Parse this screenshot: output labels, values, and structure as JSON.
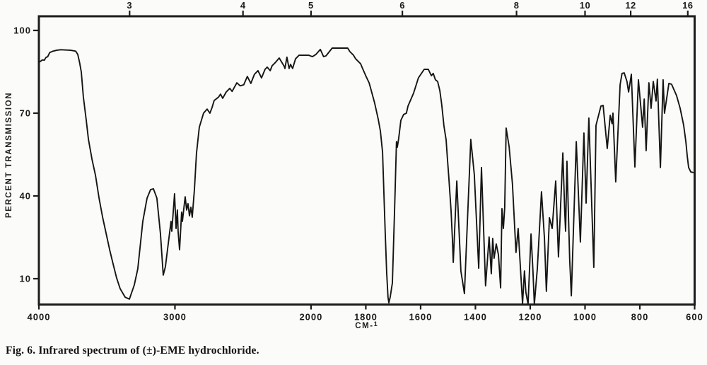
{
  "figure": {
    "caption": "Fig. 6.  Infrared spectrum of (±)-EME hydrochloride."
  },
  "chart_data": {
    "type": "line",
    "title": "",
    "background": "#fbfbf9",
    "line_color": "#151515",
    "axis_color": "#1c1c1c",
    "x_axis": {
      "label": "CM-1",
      "label_prefix": "CM-",
      "label_sup": "1",
      "unit": "wavenumber (cm-1)",
      "range": [
        4000,
        600
      ],
      "ticks": [
        4000,
        3000,
        2000,
        1800,
        1600,
        1400,
        1200,
        1000,
        800,
        600
      ],
      "scale_break": {
        "at": 2000,
        "left_fraction": 0.415
      },
      "grid": false
    },
    "top_axis": {
      "unit": "microns",
      "ticks": [
        3,
        4,
        5,
        6,
        8,
        10,
        12,
        16
      ]
    },
    "y_axis": {
      "label": "PERCENT TRANSMISSION",
      "range": [
        0,
        105
      ],
      "ticks": [
        100,
        70,
        40,
        10
      ],
      "grid": false
    },
    "series": [
      {
        "name": "(±)-EME hydrochloride",
        "x_unit": "cm-1",
        "y_unit": "percent transmission",
        "points": [
          [
            4000,
            88.5
          ],
          [
            3988,
            88.8
          ],
          [
            3975,
            89.3
          ],
          [
            3960,
            89.2
          ],
          [
            3948,
            90.2
          ],
          [
            3935,
            90.5
          ],
          [
            3920,
            92.0
          ],
          [
            3900,
            92.4
          ],
          [
            3870,
            92.8
          ],
          [
            3840,
            93.0
          ],
          [
            3800,
            92.9
          ],
          [
            3766,
            92.8
          ],
          [
            3730,
            92.5
          ],
          [
            3714,
            91.3
          ],
          [
            3700,
            88.2
          ],
          [
            3688,
            84.9
          ],
          [
            3673,
            75.9
          ],
          [
            3652,
            67.4
          ],
          [
            3636,
            60.5
          ],
          [
            3610,
            53.3
          ],
          [
            3584,
            47.4
          ],
          [
            3558,
            39.2
          ],
          [
            3532,
            32.3
          ],
          [
            3506,
            26.4
          ],
          [
            3480,
            20.5
          ],
          [
            3455,
            15.4
          ],
          [
            3429,
            10.3
          ],
          [
            3403,
            6.4
          ],
          [
            3366,
            3.3
          ],
          [
            3335,
            2.6
          ],
          [
            3299,
            7.7
          ],
          [
            3273,
            13.6
          ],
          [
            3236,
            30.8
          ],
          [
            3205,
            39.2
          ],
          [
            3179,
            42.3
          ],
          [
            3158,
            42.6
          ],
          [
            3133,
            39.2
          ],
          [
            3107,
            26.4
          ],
          [
            3086,
            11.3
          ],
          [
            3070,
            14.4
          ],
          [
            3055,
            20.5
          ],
          [
            3029,
            30.8
          ],
          [
            3023,
            27.2
          ],
          [
            3003,
            40.8
          ],
          [
            2992,
            28.2
          ],
          [
            2982,
            34.9
          ],
          [
            2977,
            27.2
          ],
          [
            2966,
            20.5
          ],
          [
            2951,
            34.1
          ],
          [
            2945,
            30.8
          ],
          [
            2925,
            39.7
          ],
          [
            2914,
            34.9
          ],
          [
            2904,
            37.2
          ],
          [
            2893,
            32.8
          ],
          [
            2883,
            35.9
          ],
          [
            2873,
            32.3
          ],
          [
            2857,
            42.3
          ],
          [
            2842,
            55.4
          ],
          [
            2821,
            64.9
          ],
          [
            2790,
            70.0
          ],
          [
            2764,
            71.5
          ],
          [
            2743,
            70.0
          ],
          [
            2727,
            72.1
          ],
          [
            2712,
            74.6
          ],
          [
            2680,
            75.8
          ],
          [
            2665,
            76.9
          ],
          [
            2649,
            75.4
          ],
          [
            2623,
            77.7
          ],
          [
            2597,
            79.0
          ],
          [
            2580,
            77.9
          ],
          [
            2545,
            81.0
          ],
          [
            2520,
            79.9
          ],
          [
            2494,
            80.3
          ],
          [
            2468,
            83.3
          ],
          [
            2442,
            80.8
          ],
          [
            2416,
            84.1
          ],
          [
            2390,
            85.4
          ],
          [
            2364,
            82.8
          ],
          [
            2338,
            85.9
          ],
          [
            2322,
            86.7
          ],
          [
            2300,
            85.4
          ],
          [
            2286,
            87.2
          ],
          [
            2260,
            88.5
          ],
          [
            2234,
            90.0
          ],
          [
            2197,
            87.0
          ],
          [
            2192,
            86.2
          ],
          [
            2177,
            90.3
          ],
          [
            2161,
            86.2
          ],
          [
            2150,
            87.7
          ],
          [
            2135,
            86.2
          ],
          [
            2114,
            89.7
          ],
          [
            2088,
            91.0
          ],
          [
            2050,
            91.0
          ],
          [
            2016,
            91.0
          ],
          [
            1995,
            90.5
          ],
          [
            1982,
            91.3
          ],
          [
            1966,
            93.1
          ],
          [
            1954,
            90.5
          ],
          [
            1945,
            90.8
          ],
          [
            1923,
            93.6
          ],
          [
            1897,
            93.6
          ],
          [
            1866,
            93.6
          ],
          [
            1858,
            92.3
          ],
          [
            1845,
            91.0
          ],
          [
            1837,
            89.7
          ],
          [
            1819,
            87.9
          ],
          [
            1812,
            86.2
          ],
          [
            1799,
            83.3
          ],
          [
            1788,
            81.0
          ],
          [
            1781,
            78.5
          ],
          [
            1773,
            75.6
          ],
          [
            1768,
            73.8
          ],
          [
            1755,
            67.9
          ],
          [
            1747,
            63.6
          ],
          [
            1739,
            55.9
          ],
          [
            1734,
            41.0
          ],
          [
            1729,
            26.4
          ],
          [
            1724,
            12.3
          ],
          [
            1719,
            3.3
          ],
          [
            1716,
            1.3
          ],
          [
            1711,
            3.3
          ],
          [
            1703,
            8.5
          ],
          [
            1695,
            34.9
          ],
          [
            1688,
            59.7
          ],
          [
            1685,
            57.7
          ],
          [
            1680,
            60.8
          ],
          [
            1672,
            67.4
          ],
          [
            1662,
            69.5
          ],
          [
            1652,
            70.0
          ],
          [
            1646,
            72.6
          ],
          [
            1626,
            77.2
          ],
          [
            1608,
            82.8
          ],
          [
            1587,
            85.9
          ],
          [
            1572,
            85.9
          ],
          [
            1561,
            83.6
          ],
          [
            1554,
            84.4
          ],
          [
            1546,
            82.1
          ],
          [
            1538,
            81.5
          ],
          [
            1530,
            78.2
          ],
          [
            1523,
            73.1
          ],
          [
            1515,
            65.4
          ],
          [
            1507,
            60.3
          ],
          [
            1502,
            53.3
          ],
          [
            1497,
            46.4
          ],
          [
            1489,
            34.6
          ],
          [
            1484,
            24.4
          ],
          [
            1481,
            15.9
          ],
          [
            1468,
            45.4
          ],
          [
            1453,
            12.8
          ],
          [
            1440,
            4.6
          ],
          [
            1417,
            60.5
          ],
          [
            1404,
            47.7
          ],
          [
            1388,
            13.8
          ],
          [
            1378,
            50.3
          ],
          [
            1363,
            7.4
          ],
          [
            1350,
            25.1
          ],
          [
            1342,
            11.8
          ],
          [
            1337,
            24.6
          ],
          [
            1332,
            17.4
          ],
          [
            1324,
            22.6
          ],
          [
            1316,
            18.7
          ],
          [
            1308,
            6.7
          ],
          [
            1303,
            35.4
          ],
          [
            1298,
            28.2
          ],
          [
            1293,
            35.9
          ],
          [
            1288,
            64.6
          ],
          [
            1277,
            57.9
          ],
          [
            1265,
            44.4
          ],
          [
            1252,
            19.5
          ],
          [
            1244,
            28.2
          ],
          [
            1236,
            14.4
          ],
          [
            1228,
            1.0
          ],
          [
            1221,
            12.8
          ],
          [
            1216,
            5.1
          ],
          [
            1208,
            0.8
          ],
          [
            1197,
            26.2
          ],
          [
            1190,
            12.8
          ],
          [
            1185,
            0.8
          ],
          [
            1174,
            13.6
          ],
          [
            1159,
            41.5
          ],
          [
            1148,
            24.6
          ],
          [
            1141,
            5.4
          ],
          [
            1130,
            32.1
          ],
          [
            1120,
            28.2
          ],
          [
            1107,
            45.4
          ],
          [
            1097,
            17.9
          ],
          [
            1081,
            55.6
          ],
          [
            1074,
            34.1
          ],
          [
            1071,
            27.2
          ],
          [
            1066,
            52.6
          ],
          [
            1056,
            16.9
          ],
          [
            1050,
            3.8
          ],
          [
            1032,
            59.7
          ],
          [
            1017,
            23.3
          ],
          [
            1004,
            62.8
          ],
          [
            996,
            37.4
          ],
          [
            986,
            68.2
          ],
          [
            968,
            14.1
          ],
          [
            960,
            65.6
          ],
          [
            942,
            72.6
          ],
          [
            934,
            72.8
          ],
          [
            919,
            57.2
          ],
          [
            908,
            69.2
          ],
          [
            901,
            66.2
          ],
          [
            898,
            70.0
          ],
          [
            888,
            45.1
          ],
          [
            872,
            80.3
          ],
          [
            865,
            84.4
          ],
          [
            857,
            84.6
          ],
          [
            847,
            81.5
          ],
          [
            841,
            77.7
          ],
          [
            831,
            84.1
          ],
          [
            818,
            50.5
          ],
          [
            805,
            82.1
          ],
          [
            790,
            64.9
          ],
          [
            784,
            75.1
          ],
          [
            777,
            56.4
          ],
          [
            767,
            81.0
          ],
          [
            759,
            71.8
          ],
          [
            751,
            81.5
          ],
          [
            741,
            74.4
          ],
          [
            736,
            82.3
          ],
          [
            725,
            50.3
          ],
          [
            715,
            82.1
          ],
          [
            710,
            70.0
          ],
          [
            694,
            80.8
          ],
          [
            684,
            80.5
          ],
          [
            666,
            76.4
          ],
          [
            653,
            71.8
          ],
          [
            640,
            65.6
          ],
          [
            632,
            59.7
          ],
          [
            627,
            54.6
          ],
          [
            622,
            50.3
          ],
          [
            614,
            48.7
          ],
          [
            606,
            48.5
          ]
        ]
      }
    ]
  }
}
